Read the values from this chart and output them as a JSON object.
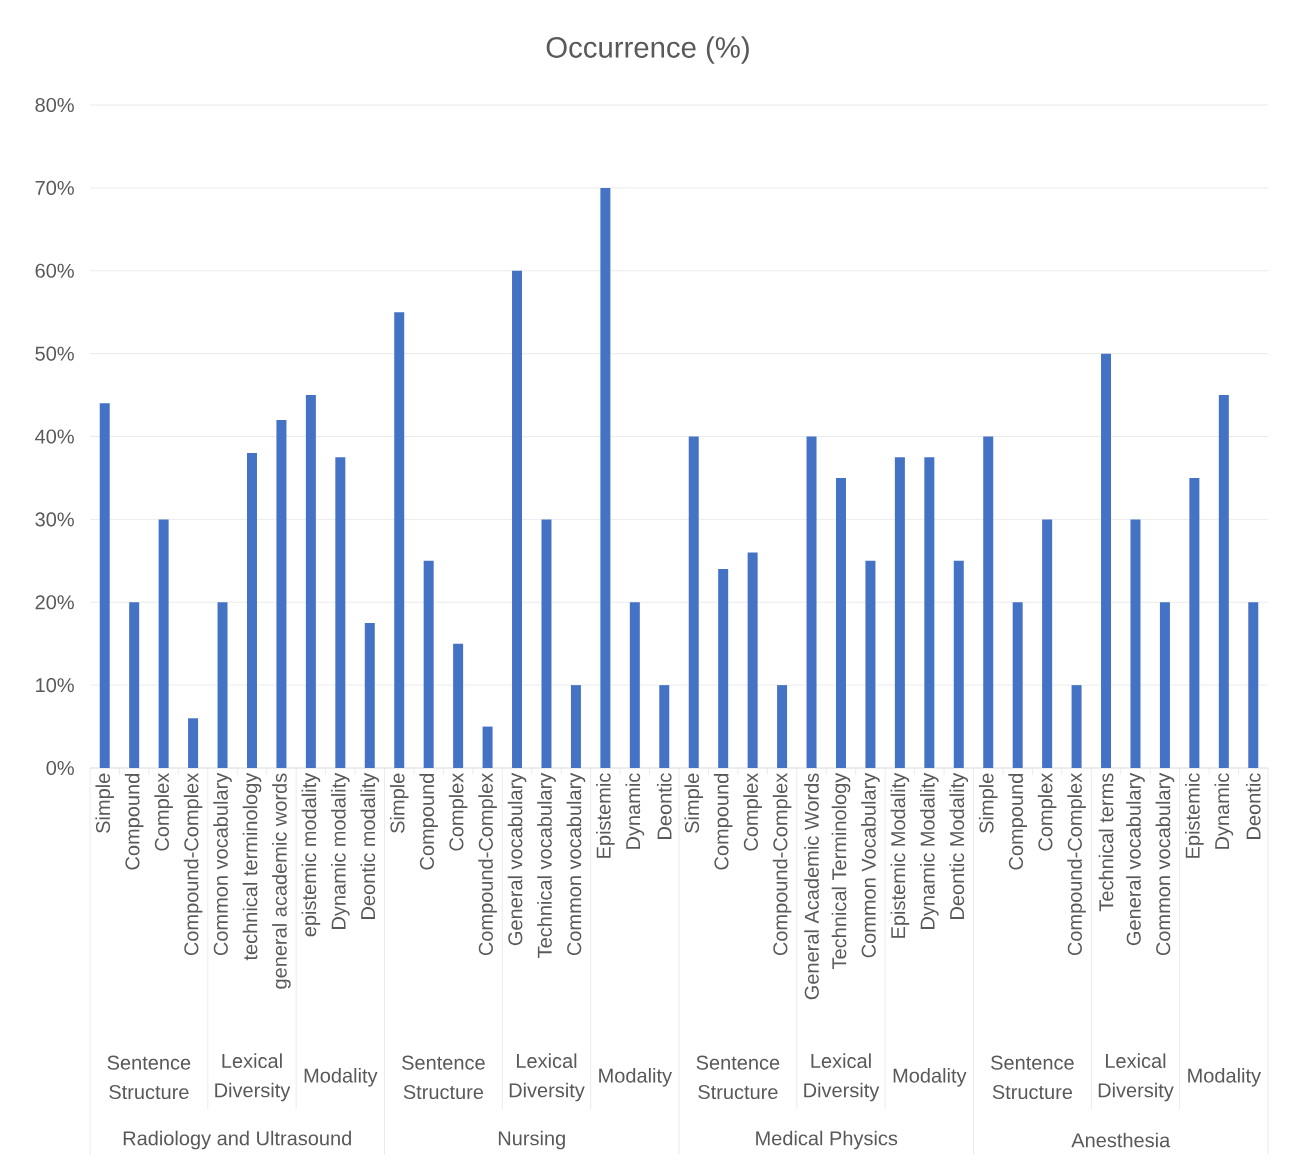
{
  "chart_data": {
    "type": "bar",
    "title": "Occurrence (%)",
    "categories": [
      "Simple",
      "Compound",
      "Complex",
      "Compound-Complex",
      "Common vocabulary",
      "technical terminology",
      "general academic words",
      "epistemic modality",
      "Dynamic modality",
      "Deontic modality",
      "Simple",
      "Compound",
      "Complex",
      "Compound-Complex",
      "General vocabulary",
      "Technical vocabulary",
      "Common vocabulary",
      "Epistemic",
      "Dynamic",
      "Deontic",
      "Simple",
      "Compound",
      "Complex",
      "Compound-Complex",
      "General Academic Words",
      "Technical Terminology",
      "Common Vocabulary",
      "Epistemic Modality",
      "Dynamic Modality",
      "Deontic Modality",
      "Simple",
      "Compound",
      "Complex",
      "Compound-Complex",
      "Technical terms",
      "General vocabulary",
      "Common vocabulary",
      "Epistemic",
      "Dynamic",
      "Deontic"
    ],
    "values": [
      44,
      20,
      30,
      6,
      20,
      38,
      42,
      45,
      37.5,
      17.5,
      55,
      25,
      15,
      5,
      60,
      30,
      10,
      70,
      20,
      10,
      40,
      24,
      26,
      10,
      40,
      35,
      25,
      37.5,
      37.5,
      25,
      40,
      20,
      30,
      10,
      50,
      30,
      20,
      35,
      45,
      20
    ],
    "color": "#4472c4",
    "ylim": [
      0,
      80
    ],
    "yticks": [
      {
        "value": 0,
        "label": "0%"
      },
      {
        "value": 10,
        "label": "10%"
      },
      {
        "value": 20,
        "label": "20%"
      },
      {
        "value": 30,
        "label": "30%"
      },
      {
        "value": 40,
        "label": "40%"
      },
      {
        "value": 50,
        "label": "50%"
      },
      {
        "value": 60,
        "label": "60%"
      },
      {
        "value": 70,
        "label": "70%"
      },
      {
        "value": 80,
        "label": "80%"
      }
    ],
    "grid": "y",
    "annotations": [
      "Sentence Structure",
      "Lexical Diversity",
      "Modality",
      "Sentence Structure",
      "Lexical Diversity",
      "Modality",
      "Sentence Structure",
      "Lexical Diversity",
      "Modality",
      "Sentence Structure",
      "Lexical Diversity",
      "Modality",
      "Radiology and Ultrasound",
      "Nursing",
      "Medical Physics",
      "Anesthesia"
    ]
  }
}
